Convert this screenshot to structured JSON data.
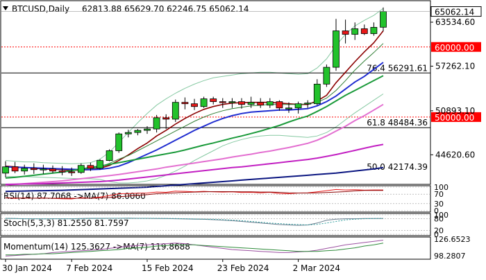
{
  "header": {
    "symbol": "BTCUSD,Daily",
    "ohlc": "62813.88 65629.70 62246.75 65062.14"
  },
  "colors": {
    "bull_candle": "#22c22c",
    "bear_candle": "#e81818",
    "candle_outline": "#000000",
    "sma_red": "#8b0000",
    "sma_thin_green": "#2e7d32",
    "sma_blue": "#1f2cd0",
    "sma_green": "#1a9a3a",
    "sma_pink": "#e36ed0",
    "sma_magenta": "#c21fc2",
    "sma_navy": "#0a1580",
    "bollinger": "#86c9a2",
    "level_red": "#ff0000",
    "level_black": "#000000"
  },
  "chart_data": [
    {
      "type": "candlestick",
      "panel": "price",
      "candles": [
        {
          "o": 42000,
          "h": 43700,
          "l": 41400,
          "c": 42900
        },
        {
          "o": 42900,
          "h": 43600,
          "l": 42000,
          "c": 42300
        },
        {
          "o": 42300,
          "h": 43200,
          "l": 41800,
          "c": 42700
        },
        {
          "o": 42700,
          "h": 43400,
          "l": 41900,
          "c": 42500
        },
        {
          "o": 42500,
          "h": 43200,
          "l": 41900,
          "c": 42600
        },
        {
          "o": 42600,
          "h": 43100,
          "l": 42000,
          "c": 42300
        },
        {
          "o": 42300,
          "h": 43000,
          "l": 41700,
          "c": 42200
        },
        {
          "o": 42200,
          "h": 42800,
          "l": 41600,
          "c": 42100
        },
        {
          "o": 42100,
          "h": 43400,
          "l": 41900,
          "c": 43100
        },
        {
          "o": 43100,
          "h": 43500,
          "l": 42300,
          "c": 42700
        },
        {
          "o": 42700,
          "h": 44000,
          "l": 42500,
          "c": 43800
        },
        {
          "o": 43800,
          "h": 45400,
          "l": 43700,
          "c": 45200
        },
        {
          "o": 45200,
          "h": 47800,
          "l": 44900,
          "c": 47600
        },
        {
          "o": 47600,
          "h": 48200,
          "l": 47100,
          "c": 47800
        },
        {
          "o": 47800,
          "h": 48300,
          "l": 47400,
          "c": 48100
        },
        {
          "o": 48100,
          "h": 48700,
          "l": 47600,
          "c": 48300
        },
        {
          "o": 48300,
          "h": 50300,
          "l": 47800,
          "c": 49900
        },
        {
          "o": 49900,
          "h": 50400,
          "l": 48300,
          "c": 49700
        },
        {
          "o": 49700,
          "h": 52500,
          "l": 49300,
          "c": 52100
        },
        {
          "o": 52100,
          "h": 52800,
          "l": 51100,
          "c": 51900
        },
        {
          "o": 51900,
          "h": 52600,
          "l": 51000,
          "c": 51500
        },
        {
          "o": 51500,
          "h": 52900,
          "l": 51300,
          "c": 52600
        },
        {
          "o": 52600,
          "h": 52900,
          "l": 51800,
          "c": 52200
        },
        {
          "o": 52200,
          "h": 52700,
          "l": 51300,
          "c": 52100
        },
        {
          "o": 52100,
          "h": 52700,
          "l": 51300,
          "c": 52200
        },
        {
          "o": 52200,
          "h": 52700,
          "l": 51200,
          "c": 51800
        },
        {
          "o": 51800,
          "h": 52900,
          "l": 51300,
          "c": 52100
        },
        {
          "o": 52100,
          "h": 52700,
          "l": 51300,
          "c": 51700
        },
        {
          "o": 51700,
          "h": 52700,
          "l": 51300,
          "c": 52200
        },
        {
          "o": 52200,
          "h": 52400,
          "l": 50900,
          "c": 51300
        },
        {
          "o": 51300,
          "h": 52100,
          "l": 50600,
          "c": 51300
        },
        {
          "o": 51300,
          "h": 52200,
          "l": 50500,
          "c": 51900
        },
        {
          "o": 51900,
          "h": 52400,
          "l": 51300,
          "c": 52000
        },
        {
          "o": 51900,
          "h": 55400,
          "l": 51700,
          "c": 54700
        },
        {
          "o": 54700,
          "h": 57500,
          "l": 54300,
          "c": 57100
        },
        {
          "o": 57100,
          "h": 64000,
          "l": 56600,
          "c": 62300
        },
        {
          "o": 62300,
          "h": 63900,
          "l": 60500,
          "c": 61800
        },
        {
          "o": 61800,
          "h": 63500,
          "l": 61000,
          "c": 62600
        },
        {
          "o": 62600,
          "h": 63200,
          "l": 61700,
          "c": 61900
        },
        {
          "o": 61900,
          "h": 63500,
          "l": 61600,
          "c": 62800
        },
        {
          "o": 62813.88,
          "h": 65629.7,
          "l": 62246.75,
          "c": 65062.14
        }
      ],
      "overlays": [
        {
          "name": "sma_red",
          "values": [
            43000,
            42900,
            42800,
            42700,
            42600,
            42550,
            42500,
            42400,
            42450,
            42500,
            42700,
            43100,
            43800,
            44600,
            45500,
            46300,
            47300,
            48100,
            49000,
            49800,
            50500,
            51100,
            51500,
            51800,
            52000,
            52050,
            52100,
            52100,
            52100,
            52000,
            51900,
            51800,
            51800,
            52300,
            53100,
            54900,
            56400,
            57900,
            59300,
            60600,
            62300
          ]
        },
        {
          "name": "sma_thin_green",
          "values": [
            null,
            null,
            null,
            null,
            null,
            null,
            null,
            null,
            42500,
            42600,
            42900,
            43400,
            44000,
            44500,
            45200,
            45900,
            46600,
            47300,
            48000,
            48700,
            49400,
            50000,
            50500,
            50900,
            51200,
            51400,
            51600,
            51700,
            51800,
            51800,
            51800,
            51800,
            51900,
            52100,
            52700,
            53800,
            55200,
            56700,
            58000,
            59200,
            60500
          ]
        },
        {
          "name": "sma_blue",
          "values": [
            42900,
            42850,
            42800,
            42750,
            42700,
            42650,
            42600,
            42550,
            42500,
            42500,
            42550,
            42700,
            43000,
            43500,
            44100,
            44700,
            45300,
            46000,
            46700,
            47400,
            48100,
            48700,
            49300,
            49800,
            50200,
            50500,
            50700,
            50800,
            50900,
            51000,
            51000,
            51100,
            51200,
            51600,
            52200,
            53000,
            54000,
            55000,
            55800,
            56800,
            57800
          ]
        },
        {
          "name": "sma_green",
          "values": [
            41300,
            41400,
            41550,
            41700,
            41850,
            42000,
            42150,
            42350,
            42600,
            42800,
            43000,
            43250,
            43500,
            43750,
            44000,
            44250,
            44500,
            44750,
            45000,
            45300,
            45650,
            46000,
            46300,
            46650,
            47000,
            47300,
            47650,
            48000,
            48400,
            48800,
            49300,
            49750,
            50150,
            50800,
            51500,
            52300,
            53100,
            53800,
            54500,
            55200,
            55900
          ]
        },
        {
          "name": "sma_pink",
          "values": [
            40300,
            40400,
            40500,
            40600,
            40700,
            40800,
            40900,
            41050,
            41200,
            41350,
            41500,
            41650,
            41800,
            42000,
            42200,
            42400,
            42600,
            42850,
            43050,
            43250,
            43450,
            43650,
            43850,
            44050,
            44300,
            44500,
            44700,
            44950,
            45150,
            45400,
            45650,
            45950,
            46250,
            46700,
            47300,
            48000,
            48700,
            49500,
            50200,
            51000,
            51800
          ]
        },
        {
          "name": "sma_magenta",
          "values": [
            40400,
            40420,
            40450,
            40480,
            40500,
            40550,
            40600,
            40650,
            40700,
            40750,
            40800,
            40900,
            41000,
            41150,
            41300,
            41450,
            41600,
            41750,
            41900,
            42050,
            42200,
            42350,
            42500,
            42650,
            42800,
            42900,
            43050,
            43200,
            43350,
            43500,
            43650,
            43800,
            43950,
            44150,
            44400,
            44650,
            44950,
            45250,
            45550,
            45850,
            46100
          ]
        },
        {
          "name": "sma_navy",
          "values": [
            39400,
            39420,
            39450,
            39480,
            39500,
            39520,
            39550,
            39600,
            39650,
            39700,
            39750,
            39800,
            39850,
            39900,
            39950,
            40000,
            40100,
            40200,
            40300,
            40400,
            40500,
            40600,
            40700,
            40800,
            40900,
            41000,
            41100,
            41200,
            41300,
            41400,
            41500,
            41600,
            41700,
            41800,
            41900,
            42000,
            42150,
            42300,
            42450,
            42600,
            42800
          ]
        },
        {
          "name": "bollinger_upper",
          "values": [
            43800,
            43700,
            43600,
            43600,
            43500,
            43450,
            43400,
            43350,
            43400,
            43500,
            44000,
            45000,
            46400,
            47800,
            49200,
            50500,
            51700,
            52600,
            53400,
            54100,
            54700,
            55200,
            55600,
            55800,
            56000,
            56200,
            56300,
            56400,
            56400,
            56300,
            56200,
            56100,
            56200,
            57000,
            58300,
            60200,
            61800,
            63000,
            63800,
            64500,
            65500
          ]
        },
        {
          "name": "bollinger_lower",
          "values": [
            41500,
            41500,
            41500,
            41450,
            41400,
            41350,
            41300,
            41250,
            41200,
            41200,
            41100,
            40800,
            40600,
            40600,
            40700,
            40900,
            41200,
            41700,
            42300,
            43000,
            43800,
            44500,
            45200,
            45900,
            46400,
            46800,
            47100,
            47300,
            47400,
            47400,
            47300,
            47200,
            47100,
            47300,
            47800,
            48600,
            49600,
            50600,
            51500,
            52400,
            53300
          ]
        }
      ],
      "levels": [
        {
          "value": 60000,
          "label": "60000.00",
          "style": "dotted",
          "color": "red"
        },
        {
          "value": 56291.61,
          "label": "76.4 56291.61",
          "style": "solid",
          "color": "black"
        },
        {
          "value": 50000,
          "label": "50000.00",
          "style": "dotted",
          "color": "red"
        },
        {
          "value": 48484.36,
          "label": "61.8 48484.36",
          "style": "solid",
          "color": "black"
        },
        {
          "value": 42174.39,
          "label": "50.0 42174.39",
          "style": "none",
          "color": "black"
        }
      ],
      "y_ticks": [
        "63534.60",
        "57262.10",
        "50893.10",
        "44620.60"
      ],
      "y_tick_values": [
        63534.6,
        57262.1,
        50893.1,
        44620.6
      ],
      "last_price_label": "65062.14",
      "ylim": [
        40500,
        66500
      ]
    },
    {
      "type": "line",
      "panel": "rsi",
      "label": "RSI(14) 87.7068 ->MA(7) 86.0060",
      "series": [
        {
          "name": "RSI(14)",
          "values": [
            55,
            52,
            54,
            53,
            54,
            52,
            51,
            50,
            55,
            53,
            58,
            64,
            72,
            73,
            74,
            75,
            79,
            78,
            83,
            82,
            80,
            82,
            80,
            79,
            80,
            77,
            78,
            76,
            78,
            73,
            72,
            75,
            76,
            80,
            85,
            90,
            88,
            89,
            87,
            88,
            88
          ]
        },
        {
          "name": "MA(7)",
          "values": [
            54,
            54,
            53,
            53,
            53,
            53,
            53,
            53,
            53,
            53,
            54,
            56,
            59,
            62,
            65,
            68,
            72,
            74,
            76,
            78,
            79,
            80,
            81,
            81,
            81,
            80,
            80,
            79,
            79,
            78,
            76,
            75,
            75,
            76,
            77,
            79,
            81,
            84,
            86,
            86,
            86
          ]
        }
      ],
      "ylim": [
        0,
        100
      ],
      "y_ticks": [
        "100",
        "70",
        "30",
        "0"
      ],
      "y_tick_values": [
        100,
        70,
        30,
        0
      ]
    },
    {
      "type": "line",
      "panel": "stochastic",
      "label": "Stoch(5,3,3) 81.2550 81.7597",
      "series": [
        {
          "name": "%K",
          "values": [
            82,
            81,
            80,
            80,
            79,
            80,
            80,
            80,
            81,
            82,
            82,
            82,
            82,
            83,
            82,
            82,
            81,
            81,
            80,
            79,
            78,
            77,
            75,
            73,
            70,
            66,
            62,
            58,
            54,
            50,
            48,
            46,
            48,
            58,
            72,
            78,
            80,
            80,
            81,
            81,
            81
          ]
        },
        {
          "name": "%D",
          "values": [
            81,
            81,
            80,
            80,
            80,
            80,
            80,
            80,
            80,
            81,
            81,
            82,
            82,
            82,
            82,
            82,
            82,
            81,
            81,
            80,
            79,
            78,
            77,
            75,
            73,
            70,
            66,
            62,
            58,
            55,
            52,
            50,
            48,
            51,
            58,
            66,
            74,
            78,
            80,
            81,
            82
          ]
        }
      ],
      "ylim": [
        0,
        100
      ],
      "y_ticks": [
        "100",
        "80",
        "20",
        "0"
      ],
      "y_tick_values": [
        100,
        80,
        20,
        0
      ]
    },
    {
      "type": "line",
      "panel": "momentum",
      "label": "Momentum(14) 125.3627 ->MA(7) 119.8688",
      "series": [
        {
          "name": "Momentum(14)",
          "values": [
            98,
            99,
            100,
            101,
            102,
            104,
            105,
            106,
            107,
            108,
            109,
            111,
            113,
            115,
            116,
            117,
            118,
            119,
            120,
            119,
            117,
            115,
            113,
            111,
            109,
            108,
            107,
            106,
            105,
            104,
            104,
            105,
            106,
            108,
            111,
            114,
            117,
            119,
            121,
            123,
            125
          ]
        },
        {
          "name": "MA(7)",
          "values": [
            100,
            100,
            101,
            101,
            102,
            102,
            103,
            104,
            105,
            106,
            107,
            108,
            109,
            111,
            112,
            113,
            115,
            116,
            117,
            117,
            117,
            116,
            115,
            114,
            113,
            112,
            111,
            110,
            109,
            108,
            107,
            106,
            106,
            106,
            107,
            108,
            110,
            112,
            115,
            117,
            120
          ]
        }
      ],
      "ylim": [
        95,
        128
      ],
      "y_ticks": [
        "126.6523",
        "98.2807"
      ],
      "y_tick_values": [
        126.6523,
        98.2807
      ]
    }
  ],
  "x_axis": {
    "labels": [
      "30 Jan 2024",
      "7 Feb 2024",
      "15 Feb 2024",
      "23 Feb 2024",
      "2 Mar 2024"
    ],
    "label_index": [
      0,
      7,
      15,
      23,
      31
    ]
  }
}
